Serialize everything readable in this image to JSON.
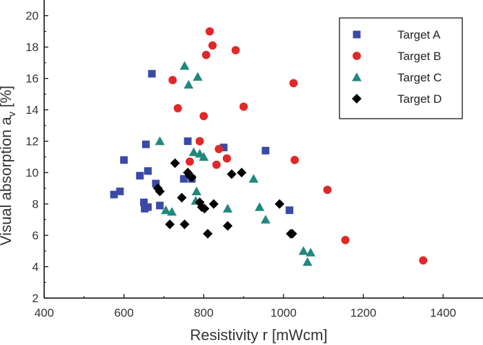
{
  "chart_data": {
    "type": "scatter",
    "title": "",
    "xlabel": "Resistivity r [mWcm]",
    "ylabel": "Visual absorption a",
    "ylabel_subscript": "v",
    "ylabel_unit": "[%]",
    "xlim": [
      400,
      1500
    ],
    "ylim": [
      2,
      21
    ],
    "xticks": [
      400,
      600,
      800,
      1000,
      1200,
      1400
    ],
    "yticks": [
      2,
      4,
      6,
      8,
      10,
      12,
      14,
      16,
      18,
      20
    ],
    "grid": false,
    "legend_position": "top-right",
    "series": [
      {
        "name": "Target A",
        "marker": "square",
        "color": "#3a4aa6",
        "x": [
          575,
          590,
          600,
          640,
          650,
          652,
          655,
          660,
          660,
          670,
          680,
          690,
          750,
          760,
          770,
          850,
          955,
          1015
        ],
        "y": [
          8.6,
          8.8,
          10.8,
          9.8,
          8.1,
          7.7,
          11.8,
          7.8,
          10.1,
          16.3,
          9.3,
          7.9,
          9.6,
          12.0,
          9.6,
          11.6,
          11.4,
          7.6
        ]
      },
      {
        "name": "Target B",
        "marker": "circle",
        "color": "#e0282a",
        "x": [
          722,
          735,
          765,
          790,
          800,
          806,
          815,
          822,
          832,
          838,
          858,
          880,
          900,
          1025,
          1028,
          1110,
          1155,
          1350
        ],
        "y": [
          15.9,
          14.1,
          10.7,
          12.0,
          13.6,
          17.5,
          19.0,
          18.1,
          10.5,
          11.5,
          10.9,
          17.8,
          14.2,
          15.7,
          10.8,
          8.9,
          5.7,
          4.4
        ]
      },
      {
        "name": "Target C",
        "marker": "triangle",
        "color": "#22887e",
        "x": [
          690,
          705,
          720,
          752,
          762,
          775,
          780,
          782,
          785,
          790,
          800,
          860,
          925,
          940,
          955,
          1050,
          1060,
          1068
        ],
        "y": [
          12.0,
          7.6,
          7.5,
          16.8,
          15.6,
          11.3,
          8.2,
          8.8,
          16.1,
          11.2,
          11.0,
          7.7,
          9.6,
          7.8,
          7.0,
          5.0,
          4.3,
          4.9
        ]
      },
      {
        "name": "Target D",
        "marker": "diamond",
        "color": "#000000",
        "x": [
          685,
          690,
          715,
          728,
          745,
          752,
          760,
          765,
          770,
          790,
          795,
          802,
          810,
          825,
          860,
          870,
          895,
          990,
          1018,
          1022
        ],
        "y": [
          9.0,
          8.8,
          6.7,
          10.6,
          8.4,
          6.7,
          10.0,
          9.8,
          9.7,
          8.1,
          7.8,
          7.7,
          6.1,
          8.0,
          6.6,
          9.9,
          10.0,
          8.0,
          6.1,
          6.1
        ]
      }
    ]
  }
}
